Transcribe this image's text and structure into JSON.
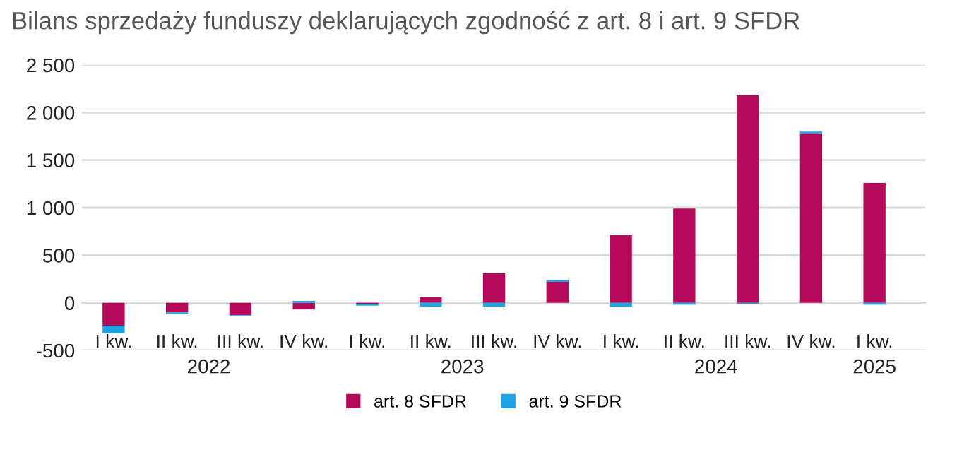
{
  "chart_data": {
    "type": "bar",
    "title": "Bilans sprzedaży funduszy deklarujących zgodność z art. 8 i art. 9 SFDR",
    "categories": [
      "I kw.",
      "II kw.",
      "III kw.",
      "IV kw.",
      "I kw.",
      "II kw.",
      "III kw.",
      "IV kw.",
      "I kw.",
      "II kw.",
      "III kw.",
      "IV kw.",
      "I kw."
    ],
    "annotations": [
      "2022",
      "2023",
      "2024",
      "2025"
    ],
    "stacked": true,
    "series": [
      {
        "name": "art. 8 SFDR",
        "color": "#b5095a",
        "values": [
          -240,
          -100,
          -130,
          -70,
          -10,
          60,
          310,
          220,
          710,
          990,
          2180,
          1780,
          1260
        ]
      },
      {
        "name": "art. 9 SFDR",
        "color": "#1ea3e6",
        "values": [
          -80,
          -20,
          -10,
          20,
          -20,
          -40,
          -40,
          20,
          -40,
          -20,
          -10,
          20,
          -20
        ]
      }
    ],
    "ylim": [
      -500,
      2500
    ],
    "yticks": [
      -500,
      0,
      500,
      {
        "value": 1000,
        "label": "1 000"
      },
      {
        "value": 1500,
        "label": "1 500"
      },
      {
        "value": 2000,
        "label": "2 000"
      },
      {
        "value": 2500,
        "label": "2 500"
      }
    ],
    "grid": "y",
    "legend": "bottom"
  }
}
